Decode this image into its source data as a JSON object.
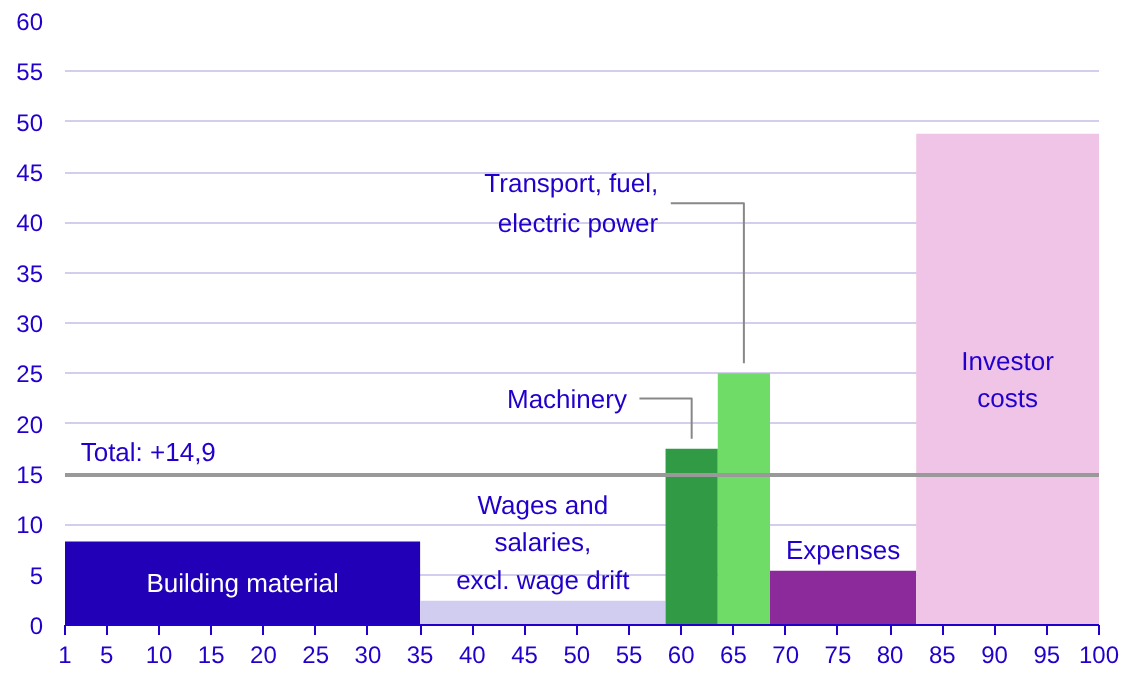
{
  "chart_data": {
    "type": "histogram",
    "bins": [
      1,
      35,
      58.5,
      63.5,
      68.5,
      82.5,
      100
    ],
    "values": [
      8.3,
      2.4,
      17.5,
      25,
      5.4,
      48.8
    ],
    "colors": [
      "#2200b8",
      "#d1cdf0",
      "#309a45",
      "#6edc67",
      "#8c2a9c",
      "#f0c4e6"
    ],
    "xlim": [
      1,
      100
    ],
    "xticks": [
      1,
      5,
      10,
      15,
      20,
      25,
      30,
      35,
      40,
      45,
      50,
      55,
      60,
      65,
      70,
      75,
      80,
      85,
      90,
      95,
      100
    ],
    "ylim": [
      0,
      60
    ],
    "yticks": [
      0,
      5,
      10,
      15,
      20,
      25,
      30,
      35,
      40,
      45,
      50,
      55,
      60
    ],
    "grid": "y",
    "ref_lines": [
      {
        "axis": "y",
        "value": 14.9,
        "label": "Total: +14,9",
        "color": "#999999"
      }
    ],
    "annotations": [
      "Building material",
      "Wages and\nsalaries,\nexcl. wage drift",
      {
        "text": "Machinery",
        "x": 61,
        "y": 17.5
      },
      {
        "text": "Transport, fuel,\nelectric power",
        "x": 66,
        "y": 25
      },
      "Expenses",
      "Investor\ncosts"
    ]
  }
}
